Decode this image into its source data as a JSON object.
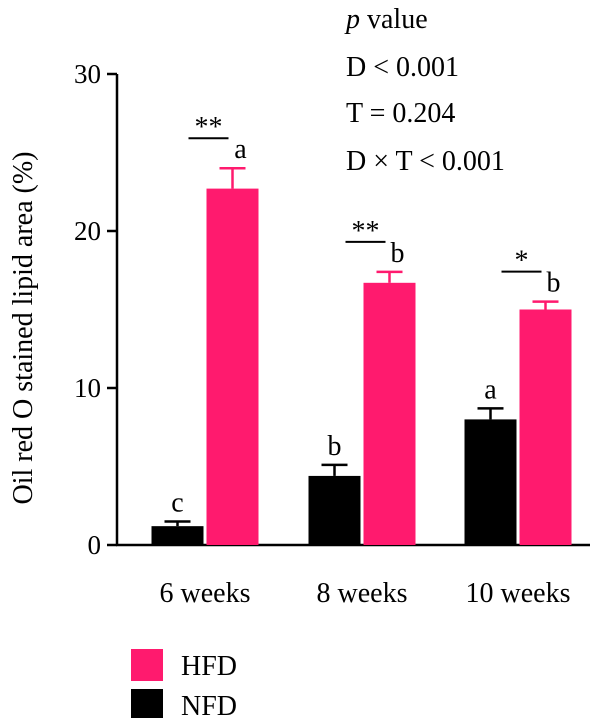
{
  "chart_data": {
    "type": "bar",
    "ylabel": "Oil red O stained lipid area (%)",
    "xlabel": "",
    "ylim": [
      0,
      30
    ],
    "yticks": [
      0,
      10,
      20,
      30
    ],
    "categories": [
      "6 weeks",
      "8 weeks",
      "10 weeks"
    ],
    "series": [
      {
        "name": "NFD",
        "color": "#000000",
        "values": [
          1.2,
          4.4,
          8.0
        ],
        "errors": [
          0.3,
          0.7,
          0.7
        ],
        "letters": [
          "c",
          "b",
          "a"
        ]
      },
      {
        "name": "HFD",
        "color": "#ff1a6e",
        "values": [
          22.7,
          16.7,
          15.0
        ],
        "errors": [
          1.3,
          0.7,
          0.5
        ],
        "letters": [
          "a",
          "b",
          "b"
        ]
      }
    ],
    "significance": [
      "**",
      "**",
      "*"
    ],
    "stats": {
      "header_italic": "p",
      "header_rest": " value",
      "lines": [
        "D < 0.001",
        "T = 0.204",
        "D × T < 0.001"
      ]
    },
    "legend_order": [
      "HFD",
      "NFD"
    ],
    "legend_placement": "bottom-left",
    "grid": false
  }
}
